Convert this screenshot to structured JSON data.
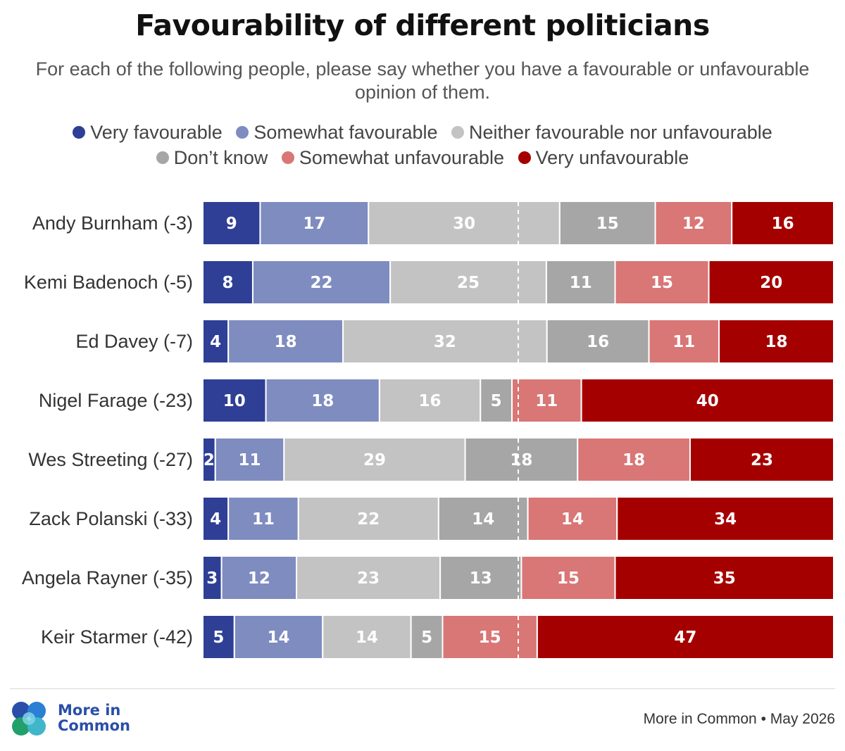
{
  "title": "Favourability of different politicians",
  "subtitle": "For each of the following people, please say whether you have a favourable or unfavourable opinion of them.",
  "logo": {
    "line1": "More in",
    "line2": "Common"
  },
  "footer": {
    "source": "More in Common",
    "separator": "•",
    "date": "May 2026"
  },
  "chart_data": {
    "type": "bar",
    "orientation": "horizontal",
    "stacked": true,
    "title": "Favourability of different politicians",
    "subtitle": "For each of the following people, please say whether you have a favourable or unfavourable opinion of them.",
    "legend_position": "top",
    "grid": false,
    "midline": "dashed vertical line marking the neutral midpoint",
    "xlim": [
      0,
      100
    ],
    "categories": [
      "Andy Burnham (-3)",
      "Kemi Badenoch (-5)",
      "Ed Davey (-7)",
      "Nigel Farage (-23)",
      "Wes Streeting (-27)",
      "Zack Polanski (-33)",
      "Angela Rayner (-35)",
      "Keir Starmer (-42)"
    ],
    "series": [
      {
        "name": "Very favourable",
        "color": "#2e3f95",
        "values": [
          9,
          8,
          4,
          10,
          2,
          4,
          3,
          5
        ]
      },
      {
        "name": "Somewhat favourable",
        "color": "#7f8cc0",
        "values": [
          17,
          22,
          18,
          18,
          11,
          11,
          12,
          14
        ]
      },
      {
        "name": "Neither favourable nor unfavourable",
        "color": "#c3c3c3",
        "values": [
          30,
          25,
          32,
          16,
          29,
          22,
          23,
          14
        ]
      },
      {
        "name": "Don’t know",
        "color": "#a6a6a6",
        "values": [
          15,
          11,
          16,
          5,
          18,
          14,
          13,
          5
        ]
      },
      {
        "name": "Somewhat unfavourable",
        "color": "#d97676",
        "values": [
          12,
          15,
          11,
          11,
          18,
          14,
          15,
          15
        ]
      },
      {
        "name": "Very unfavourable",
        "color": "#a50000",
        "values": [
          16,
          20,
          18,
          40,
          23,
          34,
          35,
          47
        ]
      }
    ]
  }
}
